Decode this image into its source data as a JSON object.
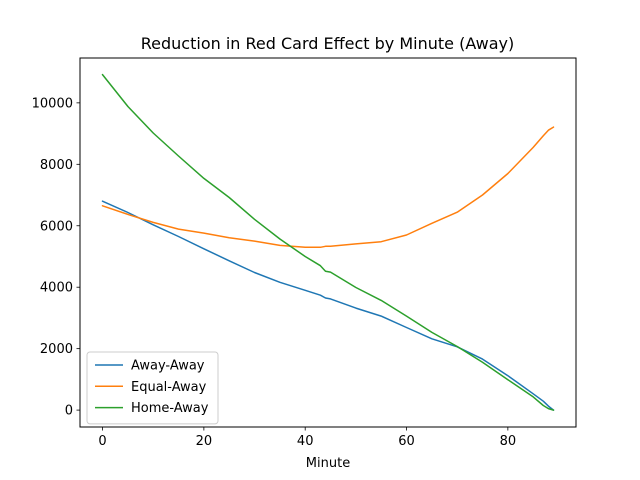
{
  "chart_data": {
    "type": "line",
    "title": "Reduction in Red Card Effect by Minute (Away)",
    "xlabel": "Minute",
    "ylabel": "",
    "xlim": [
      -4.45,
      93.45
    ],
    "ylim": [
      -550,
      11460
    ],
    "xticks": [
      0,
      20,
      40,
      60,
      80
    ],
    "yticks": [
      0,
      2000,
      4000,
      6000,
      8000,
      10000
    ],
    "grid": false,
    "legend_position": "lower-left",
    "x": [
      0,
      5,
      10,
      15,
      20,
      25,
      30,
      35,
      40,
      43,
      44,
      45,
      50,
      55,
      60,
      65,
      70,
      75,
      80,
      85,
      87,
      88,
      89
    ],
    "series": [
      {
        "name": "Away-Away",
        "color": "#1f77b4",
        "values": [
          6800,
          6430,
          6030,
          5650,
          5250,
          4860,
          4480,
          4160,
          3900,
          3740,
          3650,
          3620,
          3320,
          3060,
          2690,
          2320,
          2060,
          1660,
          1120,
          530,
          290,
          130,
          0
        ]
      },
      {
        "name": "Equal-Away",
        "color": "#ff7f0e",
        "values": [
          6650,
          6370,
          6110,
          5890,
          5760,
          5610,
          5500,
          5360,
          5300,
          5300,
          5330,
          5330,
          5410,
          5480,
          5700,
          6080,
          6440,
          7000,
          7700,
          8550,
          8930,
          9110,
          9210
        ]
      },
      {
        "name": "Home-Away",
        "color": "#2ca02c",
        "values": [
          10920,
          9880,
          9020,
          8270,
          7540,
          6920,
          6210,
          5570,
          5000,
          4700,
          4520,
          4490,
          3990,
          3570,
          3060,
          2530,
          2070,
          1560,
          990,
          430,
          150,
          50,
          0
        ]
      }
    ]
  }
}
